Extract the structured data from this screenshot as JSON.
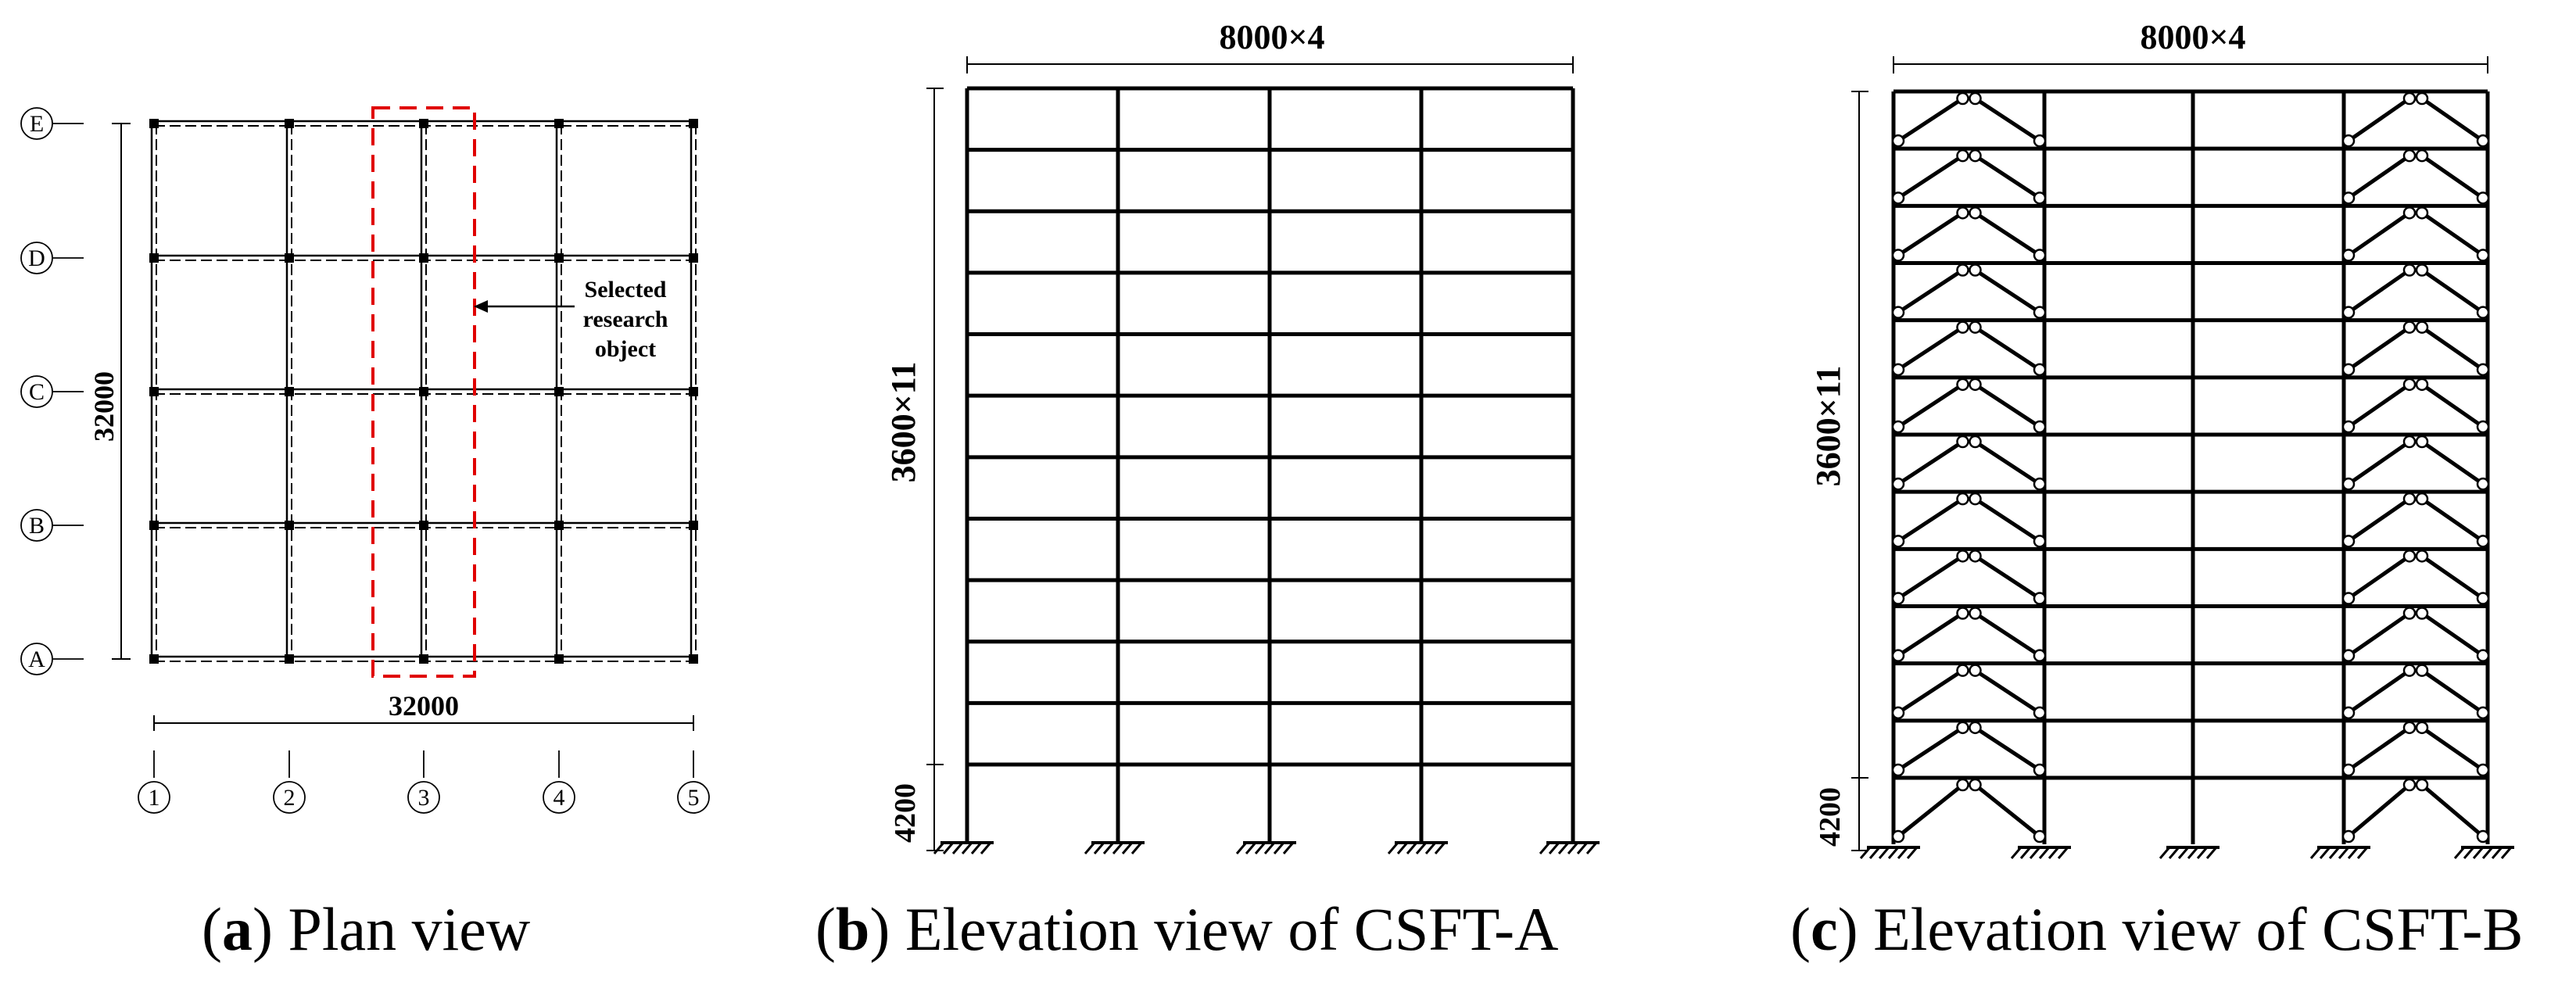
{
  "panels": {
    "plan": {
      "dimension_horizontal": "32000",
      "dimension_vertical": "32000",
      "row_axes": [
        "E",
        "D",
        "C",
        "B",
        "A"
      ],
      "column_axes": [
        "1",
        "2",
        "3",
        "4",
        "5"
      ],
      "callout": [
        "Selected",
        "research",
        "object"
      ],
      "highlight_color": "#e00000",
      "caption_letter": "a",
      "caption_text": "Plan view"
    },
    "elevation_a": {
      "dimension_width": "8000×4",
      "dimension_height": "3600×11",
      "dimension_ground": "4200",
      "caption_letter": "b",
      "caption_text": "Elevation view of CSFT-A"
    },
    "elevation_b": {
      "dimension_width": "8000×4",
      "dimension_height": "3600×11",
      "dimension_ground": "4200",
      "caption_letter": "c",
      "caption_text": "Elevation view of CSFT-B"
    }
  },
  "caption_parens": {
    "open": "(",
    "close": ")"
  }
}
